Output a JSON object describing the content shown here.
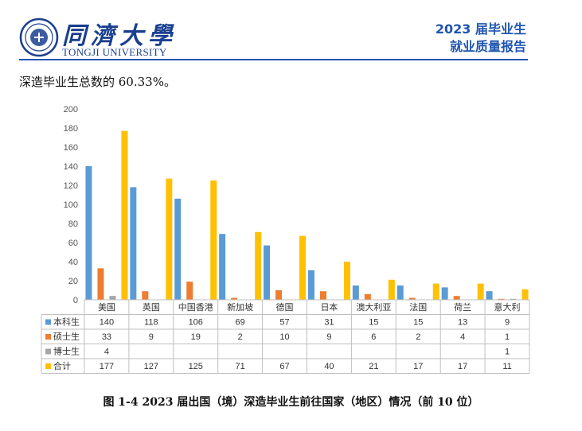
{
  "header": {
    "uni_name": "同濟大學",
    "uni_en": "TONGJI UNIVERSITY",
    "report_line1": "2023 届毕业生",
    "report_line2": "就业质量报告"
  },
  "intro_text": "深造毕业生总数的 60.33%。",
  "caption": "图 1-4   2023 届出国（境）深造毕业生前往国家（地区）情况（前 10 位）",
  "colors": {
    "本科生": "#5b9bd5",
    "硕士生": "#ed7d31",
    "博士生": "#a5a5a5",
    "合计": "#ffc000",
    "brand_blue": "#1f55b0"
  },
  "chart_data": {
    "type": "bar",
    "categories": [
      "美国",
      "英国",
      "中国香港",
      "新加坡",
      "德国",
      "日本",
      "澳大利亚",
      "法国",
      "荷兰",
      "意大利"
    ],
    "series": [
      {
        "name": "本科生",
        "values": [
          140,
          118,
          106,
          69,
          57,
          31,
          15,
          15,
          13,
          9
        ]
      },
      {
        "name": "硕士生",
        "values": [
          33,
          9,
          19,
          2,
          10,
          9,
          6,
          2,
          4,
          1
        ]
      },
      {
        "name": "博士生",
        "values": [
          4,
          null,
          null,
          null,
          null,
          null,
          null,
          null,
          null,
          1
        ]
      },
      {
        "name": "合计",
        "values": [
          177,
          127,
          125,
          71,
          67,
          40,
          21,
          17,
          17,
          11
        ]
      }
    ],
    "ylim": [
      0,
      200
    ],
    "yticks": [
      0,
      20,
      40,
      60,
      80,
      100,
      120,
      140,
      160,
      180,
      200
    ],
    "grid": false,
    "legend": "data-table"
  }
}
